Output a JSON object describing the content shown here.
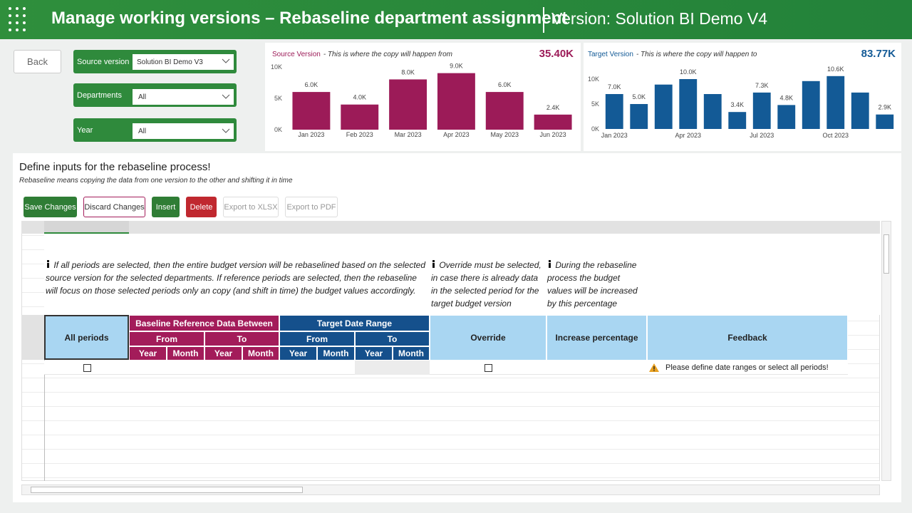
{
  "header": {
    "title": "Manage working versions – Rebaseline department assignment",
    "version": "Version: Solution BI Demo V4"
  },
  "back": "Back",
  "filters": [
    {
      "label": "Source version",
      "value": "Solution BI Demo V3"
    },
    {
      "label": "Departments",
      "value": "All"
    },
    {
      "label": "Year",
      "value": "All"
    }
  ],
  "section": {
    "title": "Define inputs for the rebaseline process!",
    "subtitle": "Rebaseline means copying the data from one version to the other and shifting it in time"
  },
  "buttons": [
    "Save Changes",
    "Discard Changes",
    "Insert",
    "Delete",
    "Export to XLSX",
    "Export to PDF"
  ],
  "notes": [
    "If all periods are selected, then the entire budget version will be rebaselined based on the selected source version for the selected departments. If reference periods are selected, then the rebaseline will focus on those selected periods only an copy (and shift in time) the budget values accordingly.",
    "Override must be selected, in case there is already data in the selected period for the target budget version",
    "During the rebaseline process the budget values will be increased by this percentage"
  ],
  "table": {
    "all_periods": "All periods",
    "baseline": "Baseline Reference Data Between",
    "target": "Target Date Range",
    "from": "From",
    "to": "To",
    "year": "Year",
    "month": "Month",
    "override": "Override",
    "increase": "Increase percentage",
    "feedback": "Feedback",
    "feedback_message": "Please define date ranges or select all periods!"
  },
  "chart_data": [
    {
      "type": "bar",
      "title": "Source Version",
      "subtitle": "- This is where the copy will happen from",
      "total": "35.40K",
      "categories": [
        "Jan 2023",
        "Feb 2023",
        "Mar 2023",
        "Apr 2023",
        "May 2023",
        "Jun 2023"
      ],
      "values": [
        6000,
        4000,
        8000,
        9000,
        6000,
        2400
      ],
      "value_labels": [
        "6.0K",
        "4.0K",
        "8.0K",
        "9.0K",
        "6.0K",
        "2.4K"
      ],
      "color": "#9c1b58",
      "ylim": [
        0,
        11000
      ],
      "yticks": [
        {
          "value": 0,
          "label": "0K"
        },
        {
          "value": 5000,
          "label": "5K"
        },
        {
          "value": 10000,
          "label": "10K"
        }
      ]
    },
    {
      "type": "bar",
      "title": "Target Version",
      "subtitle": "- This is where the copy will happen to",
      "total": "83.77K",
      "categories": [
        "Jan 2023",
        null,
        null,
        "Apr 2023",
        null,
        null,
        "Jul 2023",
        null,
        null,
        "Oct 2023",
        null,
        null
      ],
      "values": [
        7000,
        5000,
        8900,
        10000,
        7000,
        3400,
        7300,
        4800,
        9600,
        10600,
        7300,
        2900
      ],
      "value_labels": [
        "7.0K",
        "5.0K",
        null,
        "10.0K",
        null,
        "3.4K",
        "7.3K",
        "4.8K",
        null,
        "10.6K",
        null,
        "2.9K"
      ],
      "color": "#135a96",
      "ylim": [
        0,
        12000
      ],
      "yticks": [
        {
          "value": 0,
          "label": "0K"
        },
        {
          "value": 5000,
          "label": "5K"
        },
        {
          "value": 10000,
          "label": "10K"
        }
      ]
    }
  ]
}
